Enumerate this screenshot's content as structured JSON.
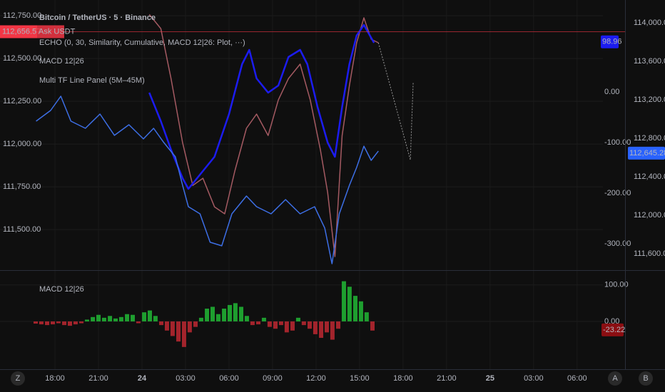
{
  "chart_data": [
    {
      "type": "line",
      "title": "Bitcoin / TetherUS · 5 · Binance",
      "xlim": [
        -3.79,
        37.78
      ],
      "xticks": [
        {
          "value": 0,
          "label": "18:00"
        },
        {
          "value": 3,
          "label": "21:00"
        },
        {
          "value": 6,
          "label": "24"
        },
        {
          "value": 9,
          "label": "03:00"
        },
        {
          "value": 12,
          "label": "06:00"
        },
        {
          "value": 15,
          "label": "09:00"
        },
        {
          "value": 18,
          "label": "12:00"
        },
        {
          "value": 21,
          "label": "15:00"
        },
        {
          "value": 24,
          "label": "18:00"
        },
        {
          "value": 27,
          "label": "21:00"
        },
        {
          "value": 30,
          "label": "25"
        },
        {
          "value": 33,
          "label": "03:00"
        },
        {
          "value": 36,
          "label": "06:00"
        }
      ],
      "ylim": [
        111267,
        112842
      ],
      "yticks": [
        {
          "value": 111500,
          "label": "111,500.00"
        },
        {
          "value": 111750,
          "label": "111,750.00"
        },
        {
          "value": 112000,
          "label": "112,000.00"
        },
        {
          "value": 112250,
          "label": "112,250.00"
        },
        {
          "value": 112500,
          "label": "112,500.00"
        },
        {
          "value": 112750,
          "label": "112,750.00"
        }
      ],
      "y2lim": [
        -350.7,
        181.7
      ],
      "y2ticks": [
        {
          "value": 0,
          "label": "0.00"
        },
        {
          "value": -100,
          "label": "-100.00"
        },
        {
          "value": -200,
          "label": "-200.00"
        },
        {
          "value": -300,
          "label": "-300.00"
        }
      ],
      "y3lim": [
        111437,
        114237
      ],
      "y3ticks": [
        {
          "value": 111600,
          "label": "111,600.00"
        },
        {
          "value": 112000,
          "label": "112,000.00"
        },
        {
          "value": 112400,
          "label": "112,400.00"
        },
        {
          "value": 112800,
          "label": "112,800.00"
        },
        {
          "value": 113200,
          "label": "113,200.00"
        },
        {
          "value": 113600,
          "label": "113,600.00"
        },
        {
          "value": 114000,
          "label": "114,000.00"
        }
      ],
      "grid": true,
      "series": [
        {
          "color": "#a45a62",
          "axis": "y",
          "style": "solid",
          "x": [
            6.5,
            7.3,
            8.0,
            8.8,
            9.5,
            10.2,
            11.0,
            11.7,
            12.4,
            13.2,
            13.9,
            14.7,
            15.4,
            16.1,
            16.9,
            17.6,
            18.3,
            18.8,
            19.3,
            19.8,
            20.3,
            20.8,
            21.3,
            21.8,
            22.3
          ],
          "values": [
            112758,
            112675,
            112383,
            112008,
            111758,
            111800,
            111633,
            111592,
            111842,
            112092,
            112175,
            112050,
            112258,
            112383,
            112467,
            112258,
            111967,
            111717,
            111342,
            112050,
            112342,
            112592,
            112738,
            112613,
            112592
          ]
        },
        {
          "name": "ECHO (0, 30, Similarity, Cumulative, MACD 12|26: Plot, ···)",
          "color": "#9a9a9a",
          "axis": "y",
          "style": "dotted",
          "x": [
            22.3,
            24.5,
            24.7
          ],
          "values": [
            112592,
            111908,
            112363
          ]
        },
        {
          "name": "MACD 12|26",
          "color": "#1c1cf0",
          "axis": "y2",
          "style": "solid",
          "x": [
            6.5,
            7.3,
            8.0,
            8.8,
            9.2,
            10.0,
            11.0,
            12.0,
            12.9,
            13.4,
            13.9,
            14.7,
            15.4,
            16.1,
            16.9,
            17.4,
            18.1,
            18.8,
            19.3,
            19.8,
            20.3,
            20.8,
            21.3,
            22.0
          ],
          "values": [
            -1.4,
            -57.7,
            -114.1,
            -170.4,
            -191.5,
            -163.4,
            -128.2,
            -43.7,
            54.9,
            83.1,
            26.8,
            -1.4,
            12.7,
            69.0,
            83.1,
            54.9,
            -29.6,
            -100,
            -128.2,
            -29.6,
            54.9,
            111.3,
            132.4,
            97.2
          ]
        },
        {
          "name": "Multi TF Line Panel (5M–45M)",
          "color": "#3d6fe6",
          "axis": "y3",
          "style": "solid",
          "x": [
            -1.3,
            -0.3,
            0.4,
            1.1,
            2.1,
            3.1,
            4.1,
            5.1,
            6.1,
            6.8,
            7.5,
            8.3,
            8.8,
            9.2,
            10.0,
            10.7,
            11.5,
            12.2,
            13.2,
            13.9,
            14.9,
            15.9,
            16.9,
            17.9,
            18.6,
            19.1,
            19.6,
            20.3,
            20.8,
            21.3,
            21.8,
            22.3
          ],
          "values": [
            112978,
            113089,
            113237,
            112978,
            112904,
            113052,
            112830,
            112941,
            112793,
            112904,
            112756,
            112607,
            112311,
            112089,
            112015,
            111719,
            111682,
            112015,
            112200,
            112089,
            112015,
            112163,
            112015,
            112089,
            111867,
            111496,
            112015,
            112311,
            112496,
            112718,
            112570,
            112667
          ]
        }
      ],
      "price_tags": [
        {
          "value": 112656.57,
          "label": "112,656.57",
          "axis": "y",
          "color": "#f23645",
          "note": "Ask USDT"
        },
        {
          "value": 98.96,
          "label": "98.96",
          "axis": "y2",
          "color": "#1c1cf0"
        },
        {
          "value": 112645.28,
          "label": "112,645.28",
          "axis": "y3",
          "color": "#2962ff"
        }
      ]
    },
    {
      "type": "bar",
      "title": "MACD 12|26",
      "xlim": [
        -3.79,
        37.78
      ],
      "x": [
        -1.33,
        -0.94,
        -0.54,
        -0.15,
        0.24,
        0.64,
        1.03,
        1.42,
        1.82,
        2.21,
        2.61,
        3.0,
        3.39,
        3.79,
        4.18,
        4.57,
        4.97,
        5.36,
        5.75,
        6.15,
        6.54,
        6.93,
        7.33,
        7.72,
        8.11,
        8.51,
        8.9,
        9.29,
        9.69,
        10.08,
        10.48,
        10.87,
        11.26,
        11.66,
        12.05,
        12.44,
        12.84,
        13.23,
        13.62,
        14.02,
        14.41,
        14.8,
        15.2,
        15.59,
        15.98,
        16.38,
        16.77,
        17.16,
        17.56,
        17.95,
        18.35,
        18.74,
        19.13,
        19.53,
        19.92,
        20.31,
        20.71,
        21.1,
        21.49,
        21.89
      ],
      "values": [
        -6,
        -8,
        -10,
        -8,
        -5,
        -10,
        -12,
        -8,
        -5,
        5,
        12,
        18,
        10,
        15,
        8,
        12,
        20,
        18,
        -5,
        25,
        30,
        15,
        -10,
        -25,
        -40,
        -55,
        -70,
        -30,
        -15,
        10,
        35,
        40,
        20,
        35,
        45,
        50,
        40,
        15,
        -10,
        -8,
        10,
        -15,
        -20,
        -10,
        -30,
        -25,
        10,
        -10,
        -20,
        -35,
        -45,
        -30,
        -50,
        -20,
        110,
        95,
        70,
        55,
        25,
        -25
      ],
      "positive_color": "#1e9e2f",
      "negative_color": "#a3242c",
      "ylim": [
        -130.8,
        138.5
      ],
      "yticks": [
        {
          "value": 100,
          "label": "100.00"
        },
        {
          "value": 0,
          "label": "0.00"
        }
      ],
      "price_tags": [
        {
          "value": -23.22,
          "label": "-23.22",
          "axis": "y",
          "color": "#8b0e12"
        }
      ]
    }
  ],
  "buttons": [
    "Z",
    "A",
    "B"
  ]
}
